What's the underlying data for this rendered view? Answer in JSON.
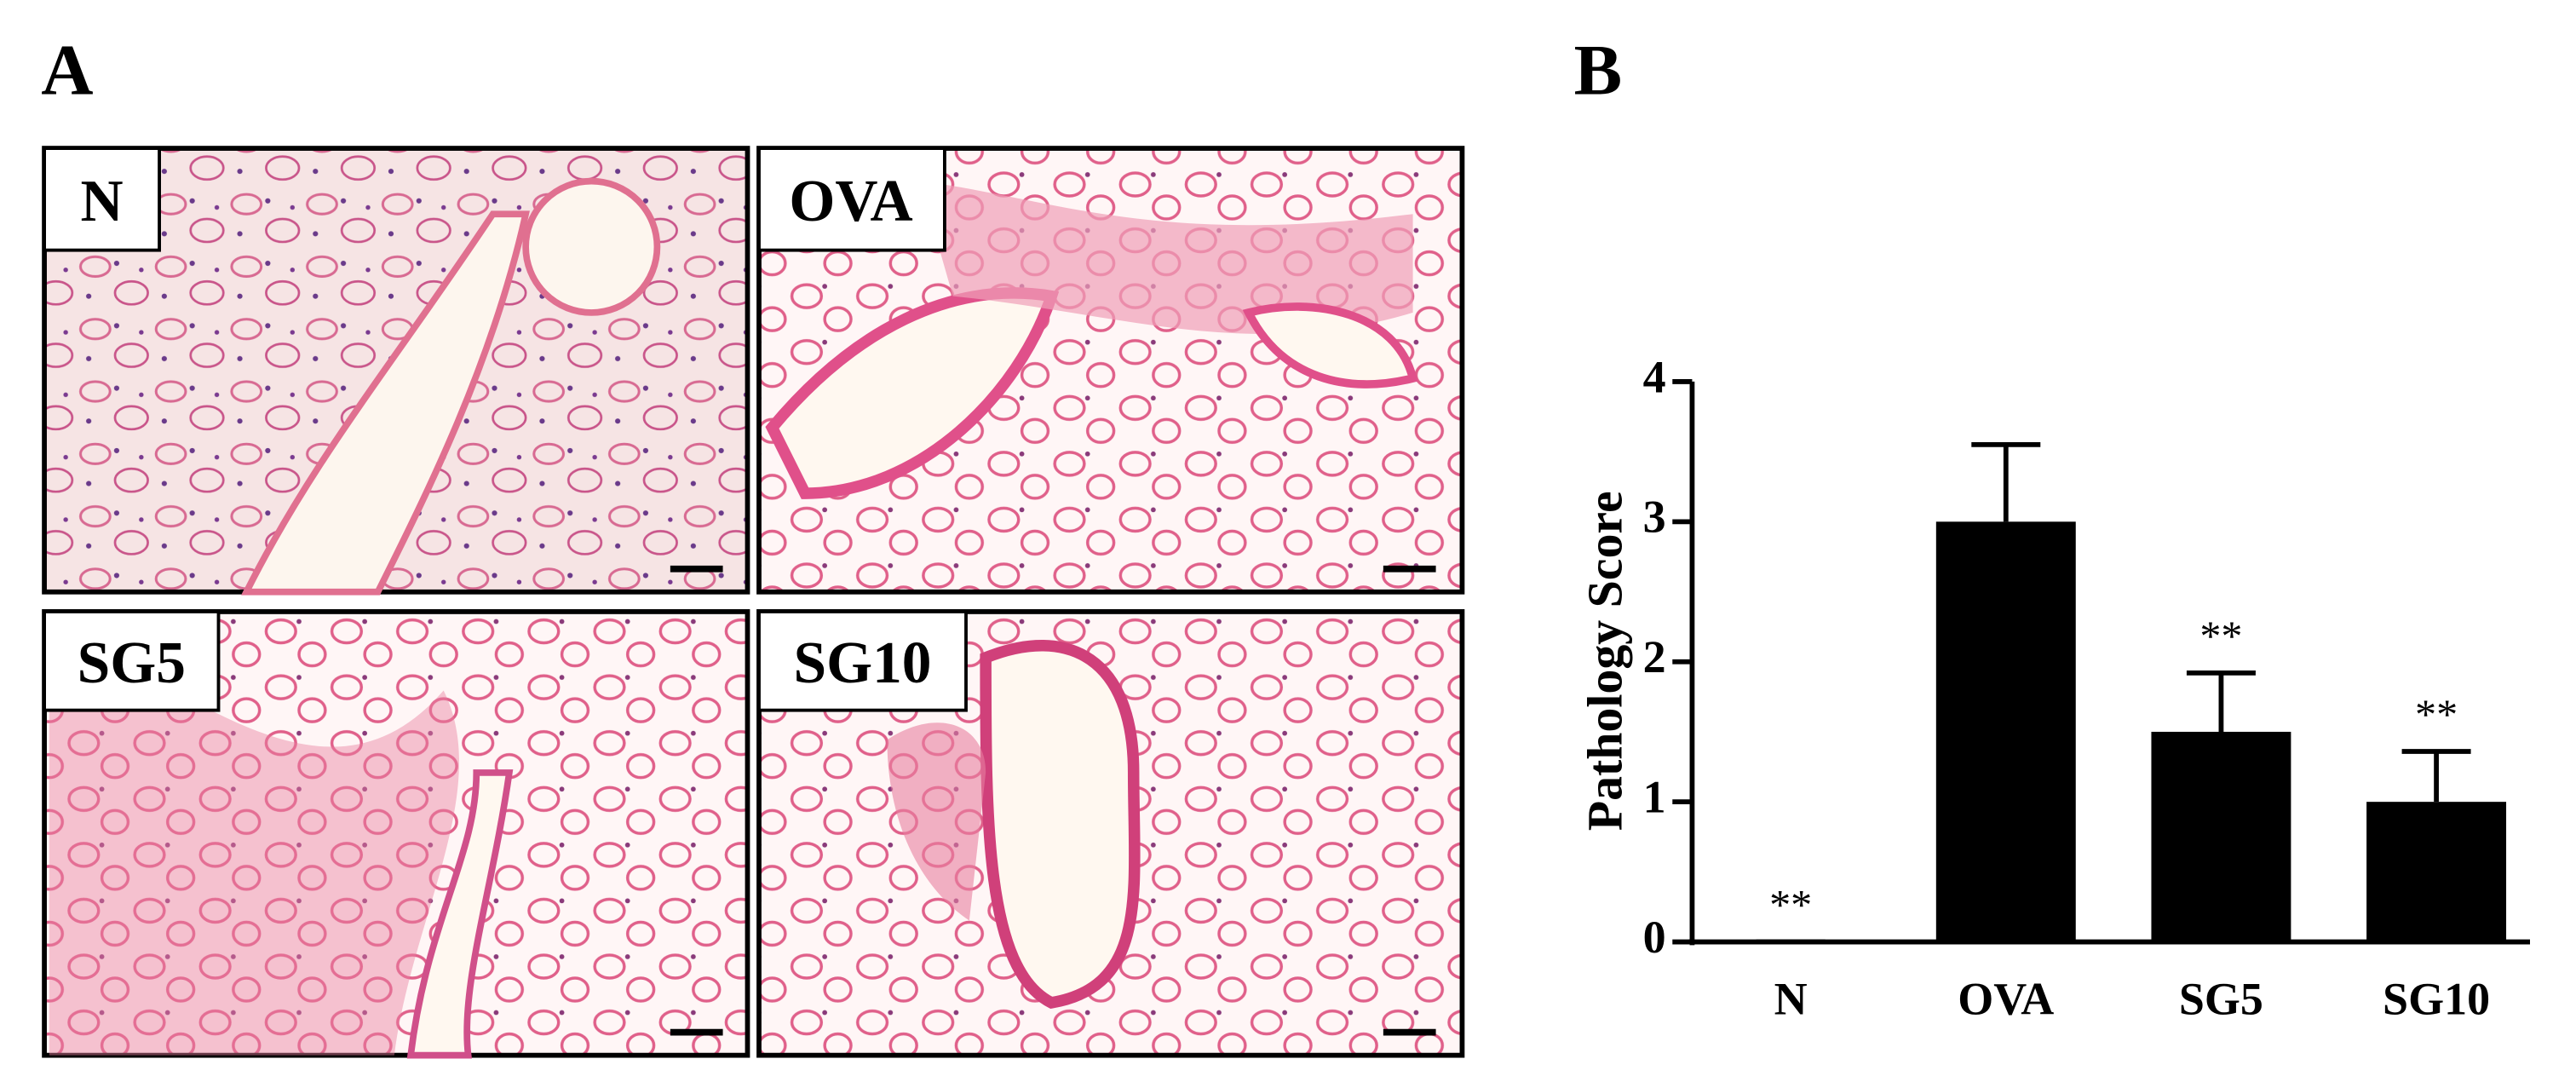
{
  "panel_labels": [
    "A",
    "B"
  ],
  "micrographs": [
    "N",
    "OVA",
    "SG5",
    "SG10"
  ],
  "chart_data": {
    "type": "bar",
    "ylabel": "Pathology Score",
    "categories": [
      "N",
      "OVA",
      "SG5",
      "SG10"
    ],
    "values": [
      0,
      3.0,
      1.5,
      1.0
    ],
    "errors": [
      0,
      0.55,
      0.42,
      0.36
    ],
    "significance": [
      "**",
      null,
      "**",
      "**"
    ],
    "color": "#000000",
    "ylim": [
      0,
      4
    ],
    "yticks": [
      0,
      1,
      2,
      3,
      4
    ],
    "grid": false
  }
}
